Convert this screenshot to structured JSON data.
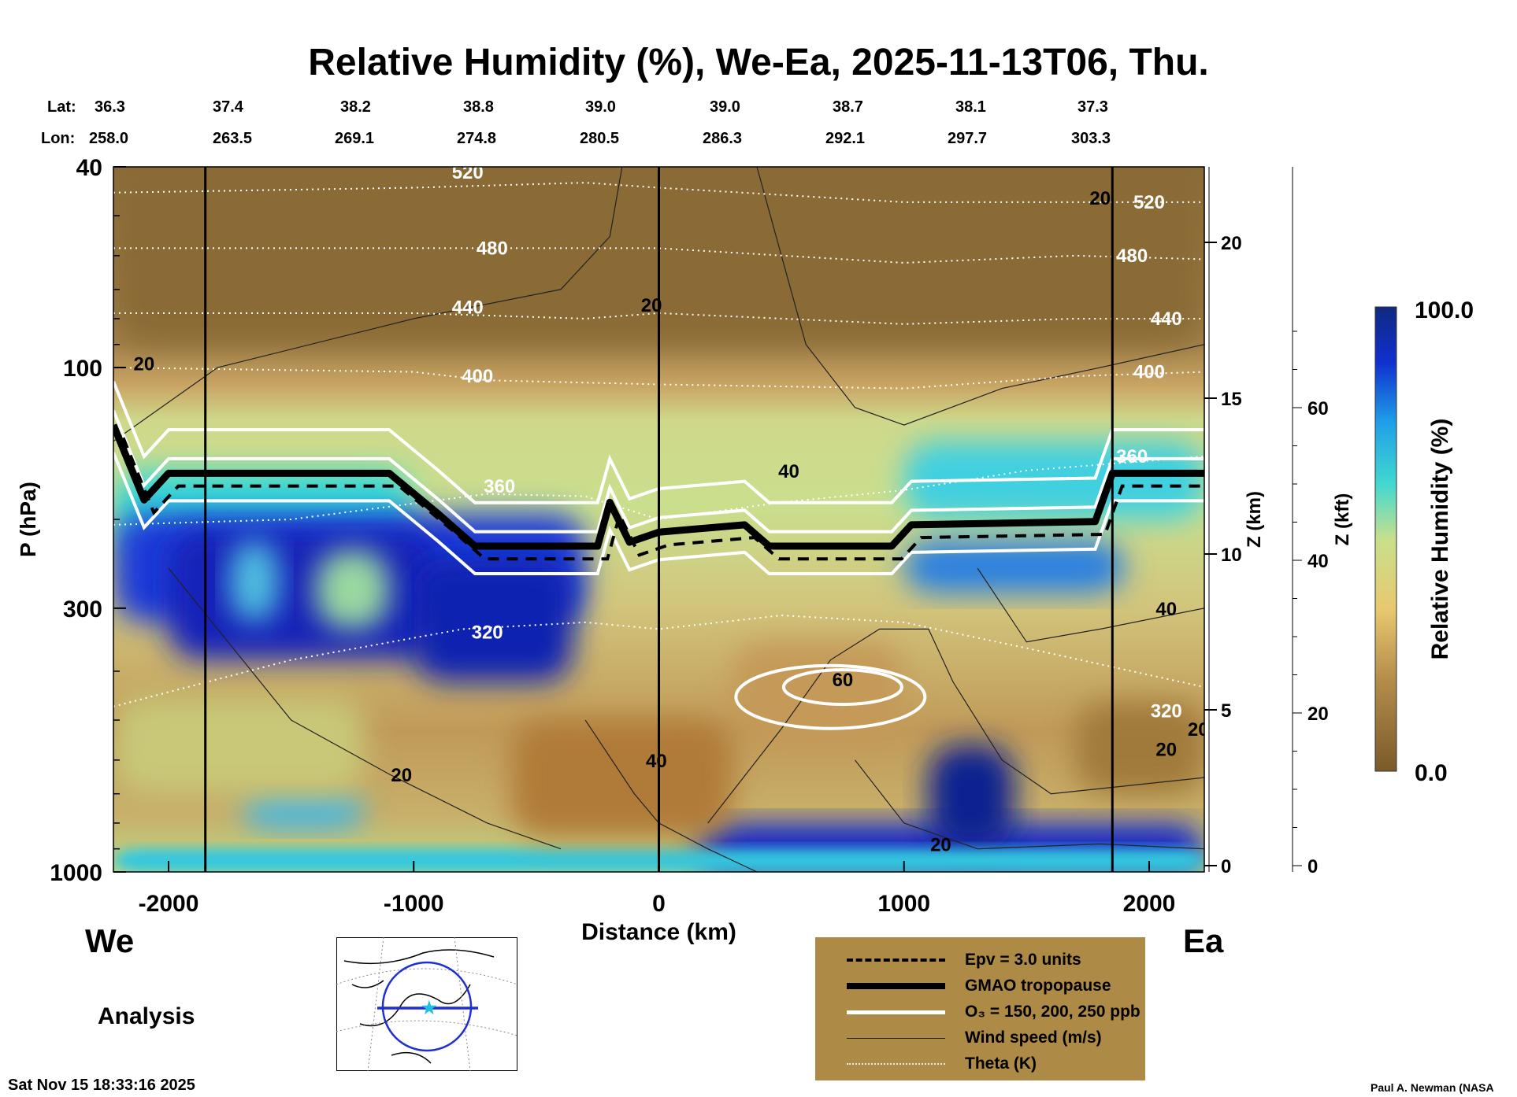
{
  "title": "Relative Humidity (%), We-Ea, 2025-11-13T06, Thu.",
  "lat_label": "Lat:",
  "lon_label": "Lon:",
  "lats": [
    "36.3",
    "37.4",
    "38.2",
    "38.8",
    "39.0",
    "39.0",
    "38.7",
    "38.1",
    "37.3"
  ],
  "lons": [
    "258.0",
    "263.5",
    "269.1",
    "274.8",
    "280.5",
    "286.3",
    "292.1",
    "297.7",
    "303.3"
  ],
  "west_label": "We",
  "east_label": "Ea",
  "analysis_label": "Analysis",
  "timestamp": "Sat Nov 15 18:33:16 2025",
  "credit": "Paul A. Newman (NASA",
  "legend": [
    {
      "label": "Epv = 3.0 units",
      "style": "dashed"
    },
    {
      "label": "GMAO tropopause",
      "style": "thick"
    },
    {
      "label": "O₃ = 150, 200, 250 ppb",
      "style": "white"
    },
    {
      "label": "Wind speed (m/s)",
      "style": "thin"
    },
    {
      "label": "Theta (K)",
      "style": "dotted"
    }
  ],
  "colors": {
    "legend_bg": "#ad8a45",
    "low": "#7a5a2a",
    "high": "#102a80"
  },
  "chart_data": {
    "type": "heatmap",
    "title": "Relative Humidity (%), We-Ea, 2025-11-13T06, Thu.",
    "xlabel": "Distance (km)",
    "ylabel": "P (hPa)",
    "y2label": "Z (km)",
    "y3label": "Z (kft)",
    "xlim": [
      -2225,
      2225
    ],
    "ylim": [
      1000,
      40
    ],
    "yscale": "log",
    "xticks": [
      "-2000",
      "-1000",
      "0",
      "1000",
      "2000"
    ],
    "xtick_values": [
      -2000,
      -1000,
      0,
      1000,
      2000
    ],
    "yticks": [
      "40",
      "100",
      "300",
      "1000"
    ],
    "ytick_values": [
      40,
      100,
      300,
      1000
    ],
    "zkm_ticks": [
      "0",
      "5",
      "10",
      "15",
      "20"
    ],
    "zkft_ticks": [
      "0",
      "20",
      "40",
      "60"
    ],
    "section_markers_km": [
      -1850,
      0,
      1850
    ],
    "colorbar": {
      "label": "Relative Humidity (%)",
      "min_label": "0.0",
      "max_label": "100.0",
      "range": [
        0,
        100
      ]
    },
    "tropopause": [
      [
        -2225,
        130
      ],
      [
        -2100,
        183
      ],
      [
        -2000,
        162
      ],
      [
        -1100,
        162
      ],
      [
        -900,
        195
      ],
      [
        -750,
        226
      ],
      [
        -250,
        226
      ],
      [
        -200,
        185
      ],
      [
        -120,
        222
      ],
      [
        0,
        212
      ],
      [
        350,
        205
      ],
      [
        450,
        226
      ],
      [
        950,
        226
      ],
      [
        1030,
        205
      ],
      [
        1780,
        202
      ],
      [
        1850,
        162
      ],
      [
        2225,
        162
      ]
    ],
    "theta": [
      {
        "value": "320",
        "points": [
          [
            -2225,
            470
          ],
          [
            -1500,
            380
          ],
          [
            -800,
            330
          ],
          [
            -300,
            320
          ],
          [
            0,
            330
          ],
          [
            500,
            310
          ],
          [
            1000,
            320
          ],
          [
            1500,
            360
          ],
          [
            2225,
            430
          ]
        ],
        "label_at": [
          -700,
          335
        ]
      },
      {
        "value": "360",
        "points": [
          [
            -2225,
            205
          ],
          [
            -1500,
            200
          ],
          [
            -700,
            178
          ],
          [
            -300,
            180
          ],
          [
            0,
            200
          ],
          [
            500,
            185
          ],
          [
            1000,
            175
          ],
          [
            1500,
            160
          ],
          [
            2225,
            150
          ]
        ],
        "label_at": [
          -650,
          172
        ]
      },
      {
        "value": "400",
        "points": [
          [
            -2225,
            100
          ],
          [
            -1000,
            102
          ],
          [
            -700,
            106
          ],
          [
            0,
            108
          ],
          [
            1000,
            110
          ],
          [
            1700,
            104
          ],
          [
            2225,
            102
          ]
        ],
        "label_at": [
          -740,
          104
        ]
      },
      {
        "value": "440",
        "points": [
          [
            -2225,
            78
          ],
          [
            -1000,
            78
          ],
          [
            -300,
            80
          ],
          [
            0,
            78
          ],
          [
            1000,
            82
          ],
          [
            1700,
            80
          ],
          [
            2225,
            80
          ]
        ],
        "label_at": [
          -780,
          76
        ]
      },
      {
        "value": "480",
        "points": [
          [
            -2225,
            58
          ],
          [
            -1000,
            58
          ],
          [
            -300,
            58
          ],
          [
            0,
            58
          ],
          [
            1000,
            62
          ],
          [
            1700,
            60
          ],
          [
            2225,
            61
          ]
        ],
        "label_at": [
          -680,
          58
        ]
      },
      {
        "value": "520",
        "points": [
          [
            -2225,
            45
          ],
          [
            -1000,
            44
          ],
          [
            -300,
            43
          ],
          [
            0,
            44
          ],
          [
            1000,
            47
          ],
          [
            1700,
            47
          ],
          [
            2225,
            47
          ]
        ],
        "label_at": [
          -780,
          41
        ]
      }
    ],
    "wind_labels": [
      {
        "text": "20",
        "at": [
          -2100,
          98
        ]
      },
      {
        "text": "20",
        "at": [
          -30,
          75
        ]
      },
      {
        "text": "20",
        "at": [
          1800,
          46
        ]
      },
      {
        "text": "40",
        "at": [
          530,
          160
        ]
      },
      {
        "text": "40",
        "at": [
          2070,
          300
        ]
      },
      {
        "text": "40",
        "at": [
          -10,
          600
        ]
      },
      {
        "text": "60",
        "at": [
          750,
          415
        ]
      },
      {
        "text": "20",
        "at": [
          -1050,
          640
        ]
      },
      {
        "text": "20",
        "at": [
          1150,
          880
        ]
      },
      {
        "text": "20",
        "at": [
          2070,
          570
        ]
      },
      {
        "text": "20",
        "at": [
          2200,
          520
        ]
      }
    ],
    "theta_extra_labels": [
      {
        "text": "520",
        "at": [
          2000,
          47
        ]
      },
      {
        "text": "480",
        "at": [
          1930,
          60
        ]
      },
      {
        "text": "440",
        "at": [
          2070,
          80
        ]
      },
      {
        "text": "400",
        "at": [
          2000,
          102
        ]
      },
      {
        "text": "360",
        "at": [
          1930,
          150
        ]
      },
      {
        "text": "320",
        "at": [
          2070,
          480
        ]
      }
    ]
  }
}
